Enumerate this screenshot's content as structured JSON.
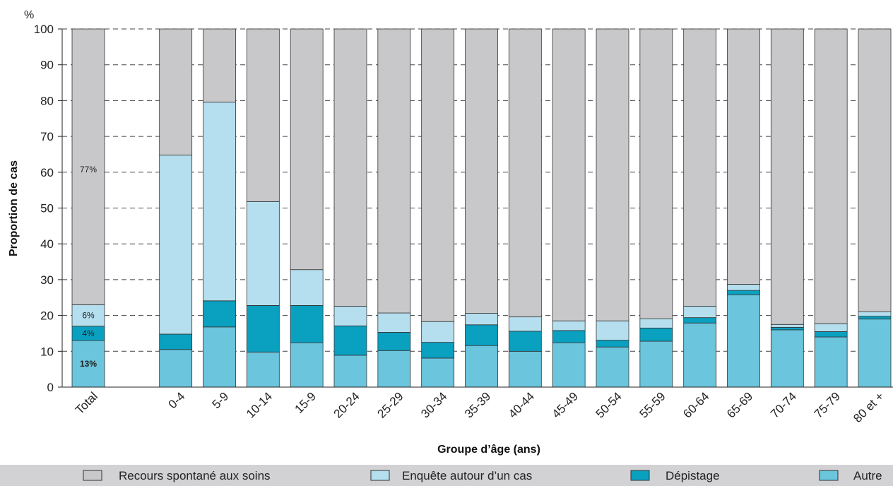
{
  "chart_data": {
    "type": "bar",
    "stacked": true,
    "y_unit": "%",
    "ylabel": "Proportion de cas",
    "xlabel": "Groupe d’âge (ans)",
    "ylim": [
      0,
      100
    ],
    "yticks": [
      0,
      10,
      20,
      30,
      40,
      50,
      60,
      70,
      80,
      90,
      100
    ],
    "grid": "dashed horizontal",
    "legend_position": "bottom",
    "categories": [
      "Total",
      "",
      "0-4",
      "5-9",
      "10-14",
      "15-9",
      "20-24",
      "25-29",
      "30-34",
      "35-39",
      "40-44",
      "45-49",
      "50-54",
      "55-59",
      "60-64",
      "65-69",
      "70-74",
      "75-79",
      "80 et +"
    ],
    "series": [
      {
        "name": "Autre",
        "color": "#6ac5dd",
        "values": [
          13,
          null,
          10.5,
          16.8,
          9.8,
          12.4,
          8.9,
          10.2,
          8.1,
          11.6,
          10.0,
          12.4,
          11.2,
          12.8,
          17.9,
          25.8,
          16.0,
          14.0,
          19.0
        ]
      },
      {
        "name": "Dépistage",
        "color": "#0aa0c0",
        "values": [
          4,
          null,
          4.3,
          7.3,
          13.0,
          10.4,
          8.2,
          5.1,
          4.4,
          5.8,
          5.6,
          3.4,
          1.9,
          3.7,
          1.5,
          1.2,
          0.7,
          1.5,
          0.8
        ]
      },
      {
        "name": "Enquête autour d’un cas",
        "color": "#b5dfee",
        "values": [
          6,
          null,
          50.0,
          55.5,
          29.0,
          10.0,
          5.5,
          5.4,
          5.8,
          3.2,
          4.0,
          2.7,
          5.4,
          2.6,
          3.2,
          1.7,
          0.8,
          2.2,
          1.2
        ]
      },
      {
        "name": "Recours spontané aux soins",
        "color": "#c8c8ca",
        "values": [
          77,
          null,
          35.2,
          20.4,
          48.2,
          67.2,
          77.4,
          79.3,
          81.7,
          79.4,
          80.4,
          81.5,
          81.5,
          80.9,
          77.4,
          71.3,
          82.5,
          82.3,
          79.0
        ]
      }
    ],
    "data_labels": [
      {
        "category": "Total",
        "series": "Recours spontané aux soins",
        "text": "77%"
      },
      {
        "category": "Total",
        "series": "Enquête autour d’un cas",
        "text": "6%"
      },
      {
        "category": "Total",
        "series": "Dépistage",
        "text": "4%"
      },
      {
        "category": "Total",
        "series": "Autre",
        "text": "13%"
      }
    ],
    "legend_order": [
      "Recours spontané aux soins",
      "Enquête autour d’un cas",
      "Dépistage",
      "Autre"
    ],
    "legend_background": "#d2d2d4",
    "gridline_color": "#444444"
  }
}
